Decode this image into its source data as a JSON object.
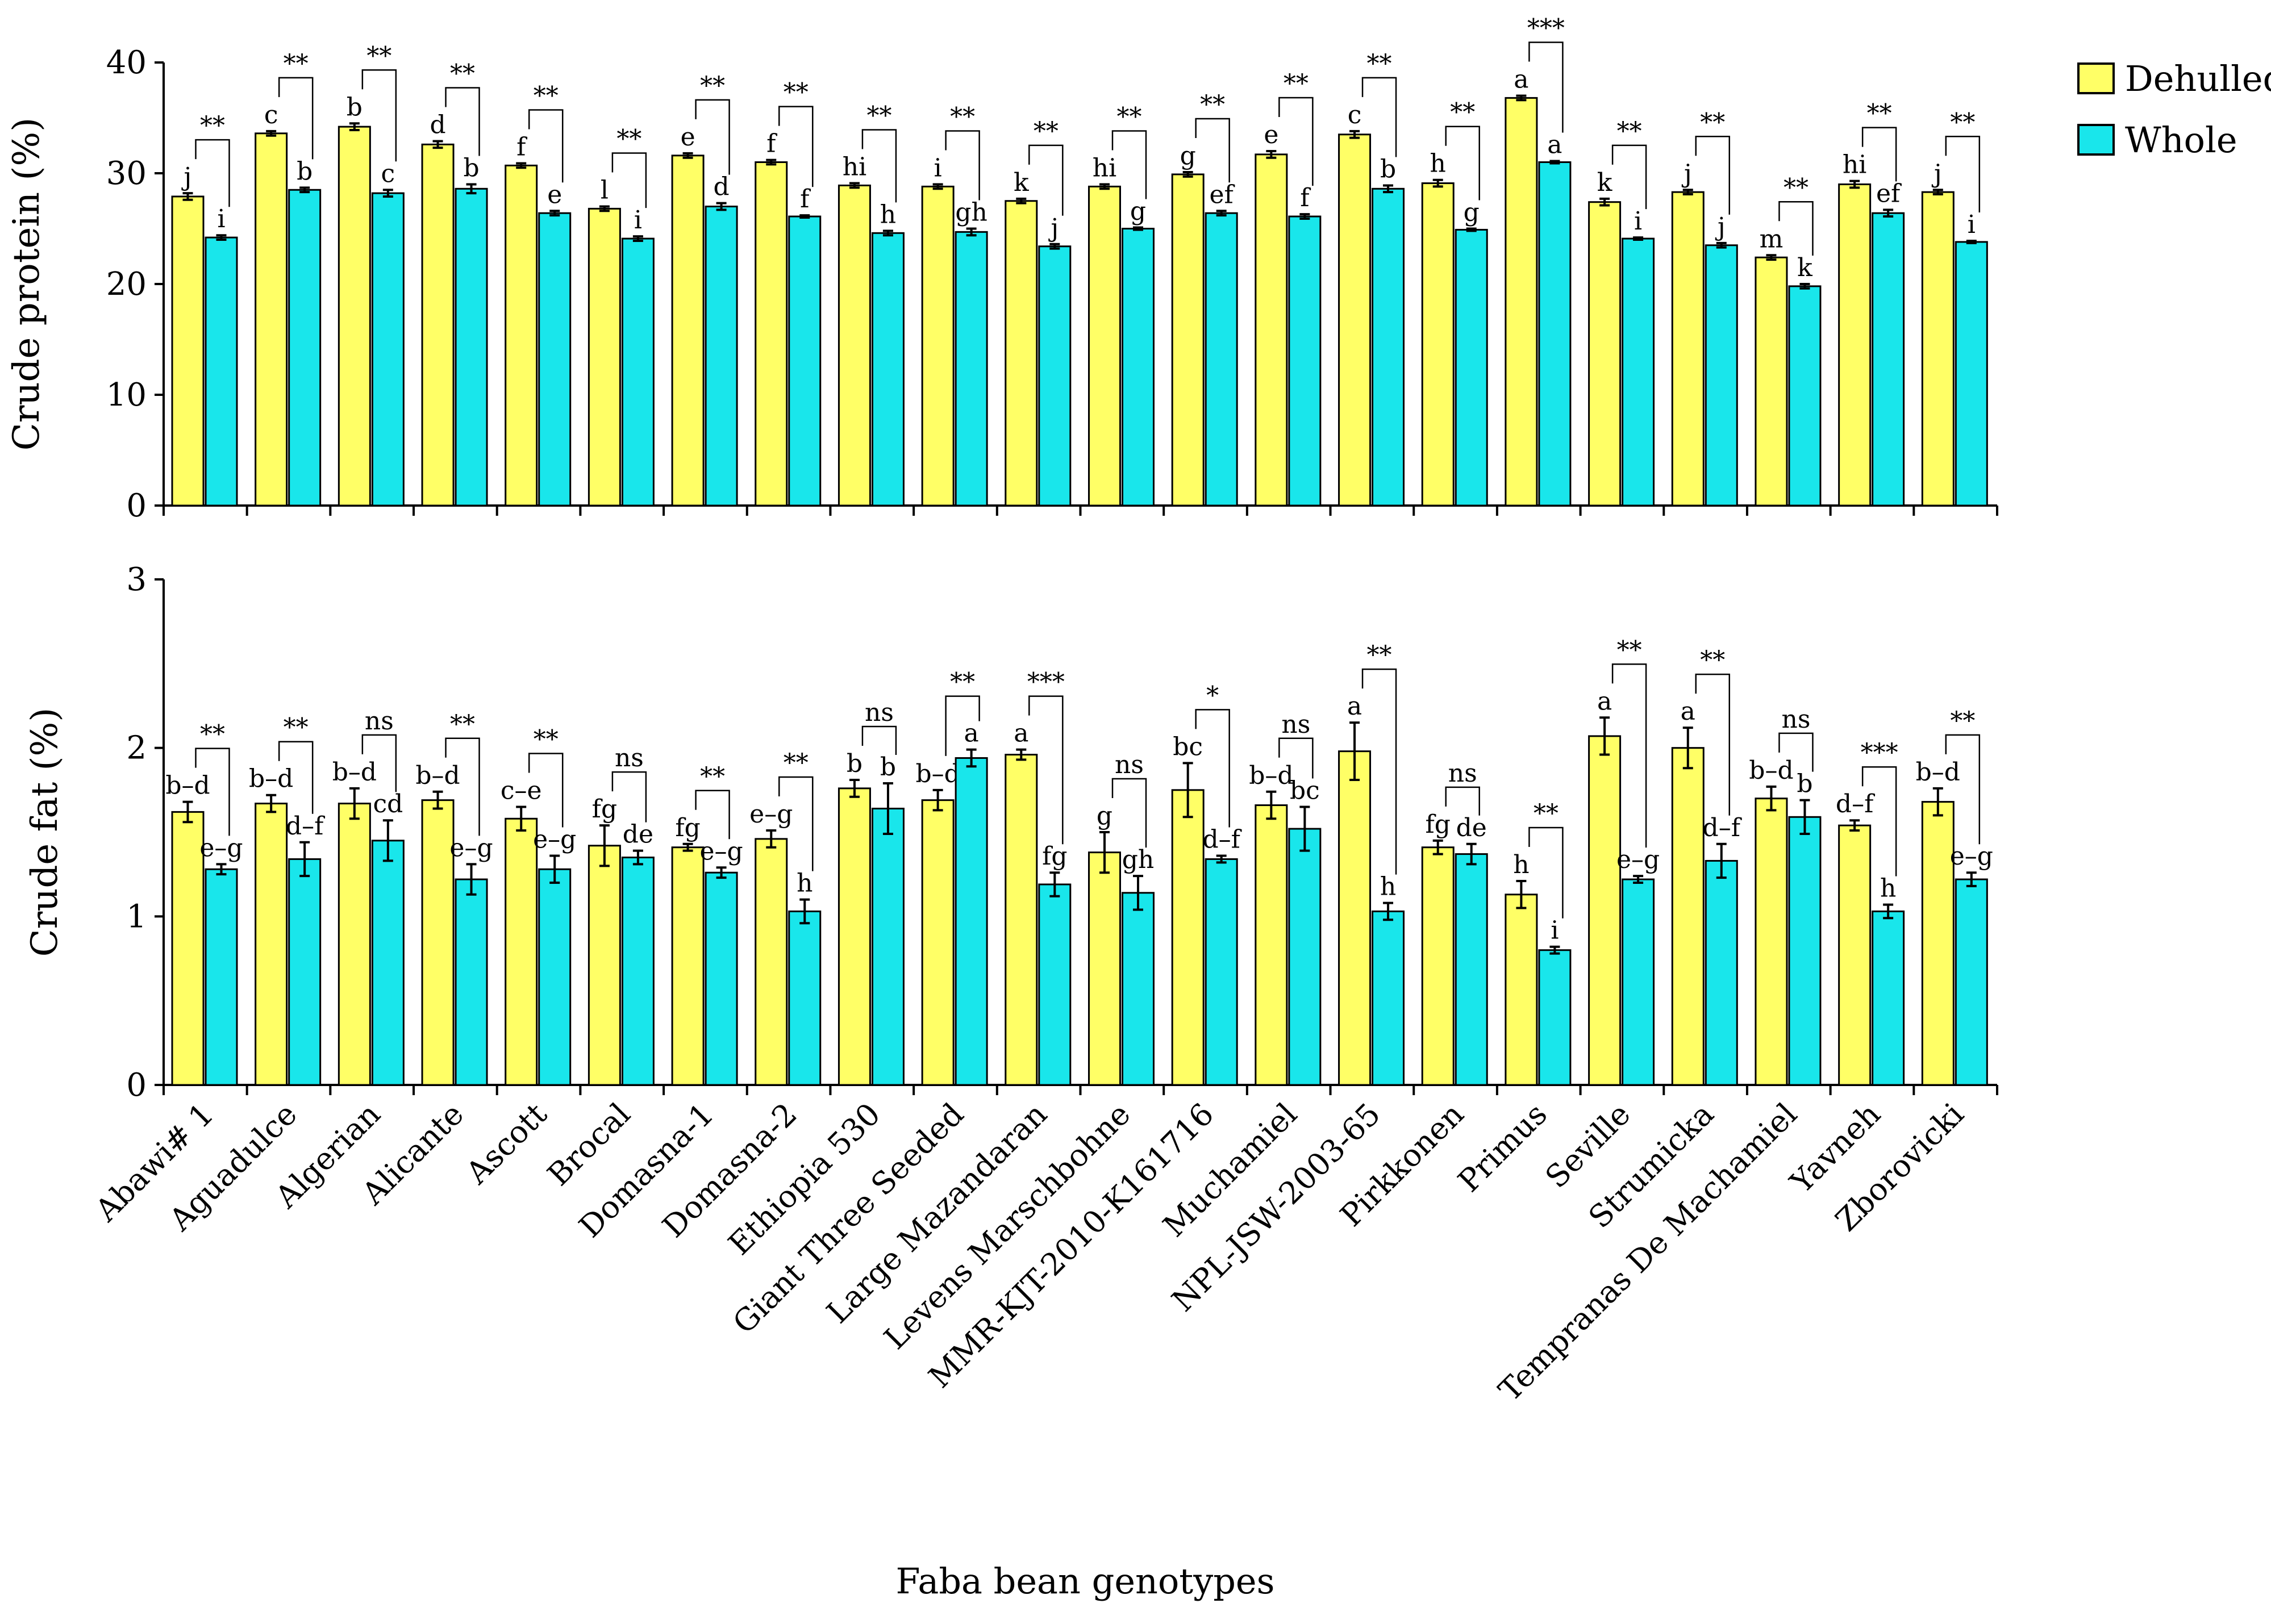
{
  "chart_data": {
    "type": "bar",
    "x_title": "Faba bean genotypes",
    "legend": {
      "placement": "top-right",
      "entries": [
        {
          "name": "Dehulled",
          "color": "#FFFF66"
        },
        {
          "name": "Whole",
          "color": "#19E6EB"
        }
      ]
    },
    "categories": [
      "Abawi# 1",
      "Aguadulce",
      "Algerian",
      "Alicante",
      "Ascott",
      "Brocal",
      "Domasna-1",
      "Domasna-2",
      "Ethiopia 530",
      "Giant Three Seeded",
      "Large Mazandaran",
      "Levens Marschbohne",
      "MMR-KJT-2010-K161716",
      "Muchamiel",
      "NPL-JSW-2003-65",
      "Pirkkonen",
      "Primus",
      "Seville",
      "Strumicka",
      "Tempranas De Machamiel",
      "Yavneh",
      "Zborovicki"
    ],
    "panels": [
      {
        "ylabel": "Crude protein (%)",
        "ylim": [
          0,
          40
        ],
        "yticks": [
          0,
          10,
          20,
          30,
          40
        ],
        "series": [
          {
            "name": "Dehulled",
            "values": [
              27.9,
              33.6,
              34.2,
              32.6,
              30.7,
              26.8,
              31.6,
              31.0,
              28.9,
              28.8,
              27.5,
              28.8,
              29.9,
              31.7,
              33.5,
              29.1,
              36.8,
              27.4,
              28.3,
              22.4,
              29.0,
              28.3
            ],
            "errors": [
              0.3,
              0.2,
              0.3,
              0.3,
              0.2,
              0.2,
              0.2,
              0.2,
              0.2,
              0.2,
              0.2,
              0.2,
              0.2,
              0.3,
              0.3,
              0.3,
              0.2,
              0.3,
              0.2,
              0.2,
              0.3,
              0.2
            ],
            "letters": [
              "j",
              "c",
              "b",
              "d",
              "f",
              "l",
              "e",
              "f",
              "hi",
              "i",
              "k",
              "hi",
              "g",
              "e",
              "c",
              "h",
              "a",
              "k",
              "j",
              "m",
              "hi",
              "j"
            ]
          },
          {
            "name": "Whole",
            "values": [
              24.2,
              28.5,
              28.2,
              28.6,
              26.4,
              24.1,
              27.0,
              26.1,
              24.6,
              24.7,
              23.4,
              25.0,
              26.4,
              26.1,
              28.6,
              24.9,
              31.0,
              24.1,
              23.5,
              19.8,
              26.4,
              23.8
            ],
            "errors": [
              0.2,
              0.2,
              0.3,
              0.4,
              0.2,
              0.2,
              0.3,
              0.1,
              0.2,
              0.3,
              0.2,
              0.1,
              0.2,
              0.2,
              0.3,
              0.1,
              0.1,
              0.1,
              0.2,
              0.2,
              0.3,
              0.1
            ],
            "letters": [
              "i",
              "b",
              "c",
              "b",
              "e",
              "i",
              "d",
              "f",
              "h",
              "gh",
              "j",
              "g",
              "ef",
              "f",
              "b",
              "g",
              "a",
              "i",
              "j",
              "k",
              "ef",
              "i"
            ]
          }
        ],
        "significance": [
          "**",
          "**",
          "**",
          "**",
          "**",
          "**",
          "**",
          "**",
          "**",
          "**",
          "**",
          "**",
          "**",
          "**",
          "**",
          "**",
          "***",
          "**",
          "**",
          "**",
          "**",
          "**"
        ]
      },
      {
        "ylabel": "Crude fat (%)",
        "ylim": [
          0,
          3
        ],
        "yticks": [
          0,
          1,
          2,
          3
        ],
        "series": [
          {
            "name": "Dehulled",
            "values": [
              1.62,
              1.67,
              1.67,
              1.69,
              1.58,
              1.42,
              1.41,
              1.46,
              1.76,
              1.69,
              1.96,
              1.38,
              1.75,
              1.66,
              1.98,
              1.41,
              1.13,
              2.07,
              2.0,
              1.7,
              1.54,
              1.68
            ],
            "errors": [
              0.06,
              0.05,
              0.09,
              0.05,
              0.07,
              0.12,
              0.02,
              0.05,
              0.05,
              0.06,
              0.03,
              0.12,
              0.16,
              0.08,
              0.17,
              0.04,
              0.08,
              0.11,
              0.12,
              0.07,
              0.03,
              0.08
            ],
            "letters": [
              "b–d",
              "b–d",
              "b–d",
              "b–d",
              "c–e",
              "fg",
              "fg",
              "e–g",
              "b",
              "b–d",
              "a",
              "g",
              "bc",
              "b–d",
              "a",
              "fg",
              "h",
              "a",
              "a",
              "b–d",
              "d–f",
              "b–d"
            ]
          },
          {
            "name": "Whole",
            "values": [
              1.28,
              1.34,
              1.45,
              1.22,
              1.28,
              1.35,
              1.26,
              1.03,
              1.64,
              1.94,
              1.19,
              1.14,
              1.34,
              1.52,
              1.03,
              1.37,
              0.8,
              1.22,
              1.33,
              1.59,
              1.03,
              1.22
            ],
            "errors": [
              0.03,
              0.1,
              0.12,
              0.09,
              0.08,
              0.04,
              0.03,
              0.07,
              0.15,
              0.05,
              0.07,
              0.1,
              0.02,
              0.13,
              0.05,
              0.06,
              0.02,
              0.02,
              0.1,
              0.1,
              0.04,
              0.04
            ],
            "letters": [
              "e–g",
              "d–f",
              "cd",
              "e–g",
              "e–g",
              "de",
              "e–g",
              "h",
              "b",
              "a",
              "fg",
              "gh",
              "d–f",
              "bc",
              "h",
              "de",
              "i",
              "e–g",
              "d–f",
              "b",
              "h",
              "e–g"
            ]
          }
        ],
        "significance": [
          "**",
          "**",
          "ns",
          "**",
          "**",
          "ns",
          "**",
          "**",
          "ns",
          "**",
          "***",
          "ns",
          "*",
          "ns",
          "**",
          "ns",
          "**",
          "**",
          "**",
          "ns",
          "***",
          "**"
        ]
      }
    ]
  }
}
